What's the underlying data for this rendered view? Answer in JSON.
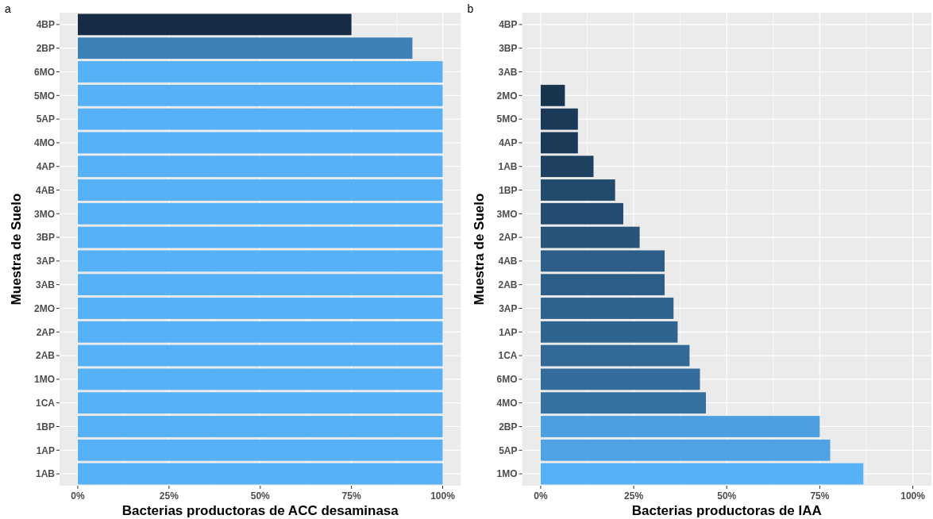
{
  "chart_data": [
    {
      "type": "bar",
      "title": "a",
      "orientation": "horizontal",
      "xlabel": "Bacterias productoras de ACC desaminasa",
      "ylabel": "Muestra de Suelo",
      "grid": true,
      "categories": [
        "4BP",
        "2BP",
        "6MO",
        "5MO",
        "5AP",
        "4MO",
        "4AP",
        "4AB",
        "3MO",
        "3BP",
        "3AP",
        "3AB",
        "2MO",
        "2AP",
        "2AB",
        "1MO",
        "1CA",
        "1BP",
        "1AP",
        "1AB"
      ],
      "values": [
        75,
        91.7,
        100,
        100,
        100,
        100,
        100,
        100,
        100,
        100,
        100,
        100,
        100,
        100,
        100,
        100,
        100,
        100,
        100,
        100
      ],
      "colors": [
        "#172b45",
        "#3e80b8",
        "#56b1f7",
        "#56b1f7",
        "#56b1f7",
        "#56b1f7",
        "#56b1f7",
        "#56b1f7",
        "#56b1f7",
        "#56b1f7",
        "#56b1f7",
        "#56b1f7",
        "#56b1f7",
        "#56b1f7",
        "#56b1f7",
        "#56b1f7",
        "#56b1f7",
        "#56b1f7",
        "#56b1f7",
        "#56b1f7"
      ],
      "xlim": [
        -5,
        105
      ],
      "xticks": [
        {
          "value": 0,
          "label": "0%"
        },
        {
          "value": 25,
          "label": "25%"
        },
        {
          "value": 50,
          "label": "50%"
        },
        {
          "value": 75,
          "label": "75%"
        },
        {
          "value": 100,
          "label": "100%"
        }
      ]
    },
    {
      "type": "bar",
      "title": "b",
      "orientation": "horizontal",
      "xlabel": "Bacterias productoras de IAA",
      "ylabel": "Muestra de Suelo",
      "grid": true,
      "categories": [
        "4BP",
        "3BP",
        "3AB",
        "2MO",
        "5MO",
        "4AP",
        "1AB",
        "1BP",
        "3MO",
        "2AP",
        "4AB",
        "2AB",
        "3AP",
        "1AP",
        "1CA",
        "6MO",
        "4MO",
        "2BP",
        "5AP",
        "1MO"
      ],
      "values": [
        0,
        0,
        0,
        6.5,
        10,
        10,
        14.2,
        20,
        22.2,
        26.6,
        33.3,
        33.3,
        35.7,
        36.8,
        40,
        42.8,
        44.4,
        75,
        77.8,
        86.7
      ],
      "colors": [
        "#132b43",
        "#132b43",
        "#132b43",
        "#183550",
        "#1b3a58",
        "#1b3a58",
        "#1e4161",
        "#224a6d",
        "#244d71",
        "#28547a",
        "#2d5e88",
        "#2d5e88",
        "#2f628d",
        "#2f648f",
        "#326996",
        "#346d9c",
        "#35709f",
        "#4d9fdf",
        "#4fa3e4",
        "#56b1f7"
      ],
      "xlim": [
        -5,
        105
      ],
      "xticks": [
        {
          "value": 0,
          "label": "0%"
        },
        {
          "value": 25,
          "label": "25%"
        },
        {
          "value": 50,
          "label": "50%"
        },
        {
          "value": 75,
          "label": "75%"
        },
        {
          "value": 100,
          "label": "100%"
        }
      ]
    }
  ]
}
